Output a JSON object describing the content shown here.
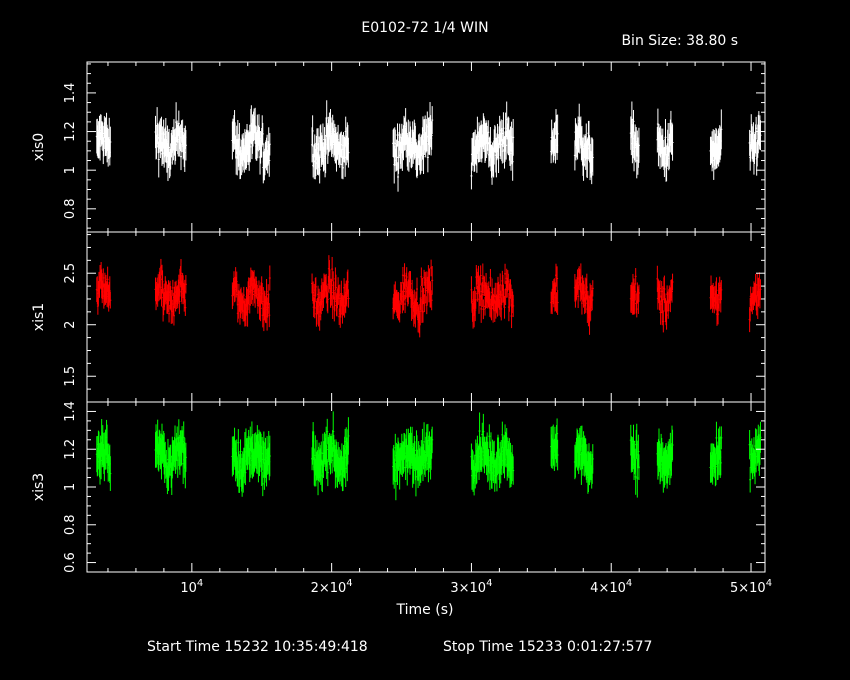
{
  "chart_data": {
    "type": "scatter",
    "title": "E0102-72 1/4 WIN",
    "subtitle": "Bin Size: 38.80 s",
    "xlabel": "Time (s)",
    "xlim": [
      2500,
      51000
    ],
    "x_ticks": [
      {
        "value": 10000,
        "mant": "",
        "exp": "4"
      },
      {
        "value": 20000,
        "mant": "2×",
        "exp": "4"
      },
      {
        "value": 30000,
        "mant": "3×",
        "exp": "4"
      },
      {
        "value": 40000,
        "mant": "4×",
        "exp": "4"
      },
      {
        "value": 50000,
        "mant": "5×",
        "exp": "4"
      }
    ],
    "footer": {
      "start": "Start Time 15232 10:35:49:418",
      "stop": "Stop Time 15233  0:01:27:577"
    },
    "segments": [
      {
        "start": 3200,
        "end": 4200
      },
      {
        "start": 7400,
        "end": 9600
      },
      {
        "start": 12900,
        "end": 15600
      },
      {
        "start": 18600,
        "end": 21200
      },
      {
        "start": 24400,
        "end": 27200
      },
      {
        "start": 30000,
        "end": 33000
      },
      {
        "start": 35700,
        "end": 36200
      },
      {
        "start": 37400,
        "end": 38700
      },
      {
        "start": 41400,
        "end": 42000
      },
      {
        "start": 43300,
        "end": 44400
      },
      {
        "start": 47100,
        "end": 47900
      },
      {
        "start": 49900,
        "end": 50700
      }
    ],
    "series": [
      {
        "name": "xis0",
        "color": "#ffffff",
        "ylim": [
          0.68,
          1.56
        ],
        "yticks": [
          0.8,
          1,
          1.2,
          1.4
        ],
        "ytick_labels": [
          "0.8",
          "1",
          "1.2",
          "1.4"
        ],
        "mean": 1.13,
        "spread": 0.09,
        "err": 0.16
      },
      {
        "name": "xis1",
        "color": "#ff0000",
        "ylim": [
          1.25,
          2.9
        ],
        "yticks": [
          1.5,
          2,
          2.5
        ],
        "ytick_labels": [
          "1.5",
          "2",
          "2.5"
        ],
        "mean": 2.28,
        "spread": 0.17,
        "err": 0.22
      },
      {
        "name": "xis3",
        "color": "#00ff00",
        "ylim": [
          0.55,
          1.45
        ],
        "yticks": [
          0.6,
          0.8,
          1,
          1.2,
          1.4
        ],
        "ytick_labels": [
          "0.6",
          "0.8",
          "1",
          "1.2",
          "1.4"
        ],
        "mean": 1.16,
        "spread": 0.09,
        "err": 0.17
      }
    ]
  }
}
